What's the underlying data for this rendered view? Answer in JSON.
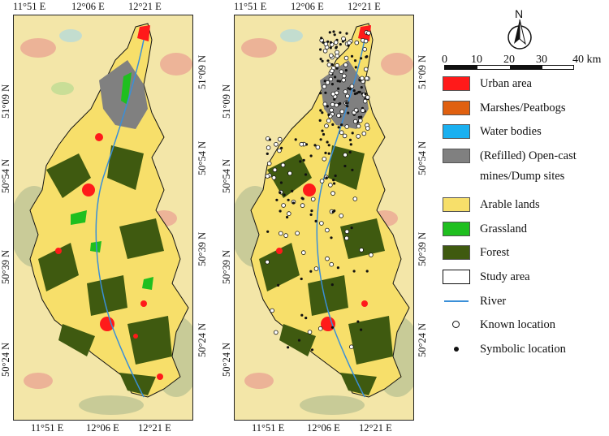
{
  "map": {
    "lon_labels": [
      "11°51 E",
      "12°06 E",
      "12°21 E"
    ],
    "lat_labels": [
      "51°09 N",
      "50°54 N",
      "50°39 N",
      "50°24 N"
    ],
    "panels": [
      "land-use-map",
      "land-use-with-locations-map"
    ]
  },
  "north_arrow": {
    "label": "N"
  },
  "scale_bar": {
    "labels": [
      "0",
      "10",
      "20",
      "30",
      "40 km"
    ]
  },
  "legend": {
    "items": [
      {
        "label": "Urban area",
        "color": "#ff1a1a",
        "type": "fill"
      },
      {
        "label": "Marshes/Peatbogs",
        "color": "#e06010",
        "type": "fill"
      },
      {
        "label": "Water bodies",
        "color": "#1ab0f0",
        "type": "fill"
      },
      {
        "label": "(Refilled) Open-cast",
        "label2": "mines/Dump sites",
        "color": "#808080",
        "type": "fill"
      },
      {
        "label": "Arable lands",
        "color": "#f7df6a",
        "type": "fill"
      },
      {
        "label": "Grassland",
        "color": "#1fbf1f",
        "type": "fill"
      },
      {
        "label": "Forest",
        "color": "#3f5a10",
        "type": "fill"
      },
      {
        "label": "Study area",
        "color": "#ffffff",
        "type": "outline"
      },
      {
        "label": "River",
        "color": "#3a8fd8",
        "type": "line"
      },
      {
        "label": "Known location",
        "type": "open-dot"
      },
      {
        "label": "Symbolic location",
        "type": "filled-dot"
      }
    ]
  }
}
